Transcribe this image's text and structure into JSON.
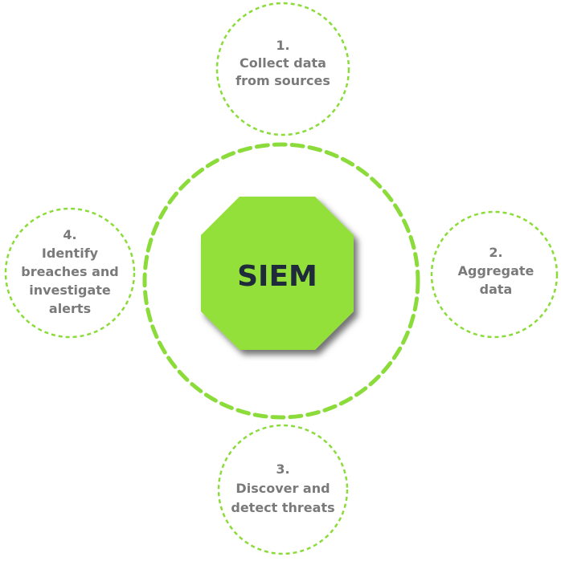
{
  "colors": {
    "accent": "#8bdc3a",
    "octagon": "#93e03a",
    "text": "#7a7a7a",
    "center_text": "#1f2a3a"
  },
  "center": {
    "label": "SIEM"
  },
  "steps": [
    {
      "number": "1.",
      "lines": [
        "Collect data",
        "from sources"
      ]
    },
    {
      "number": "2.",
      "lines": [
        "Aggregate",
        "data"
      ]
    },
    {
      "number": "3.",
      "lines": [
        "Discover and",
        "detect threats"
      ]
    },
    {
      "number": "4.",
      "lines": [
        "Identify",
        "breaches and",
        "investigate",
        "alerts"
      ]
    }
  ]
}
